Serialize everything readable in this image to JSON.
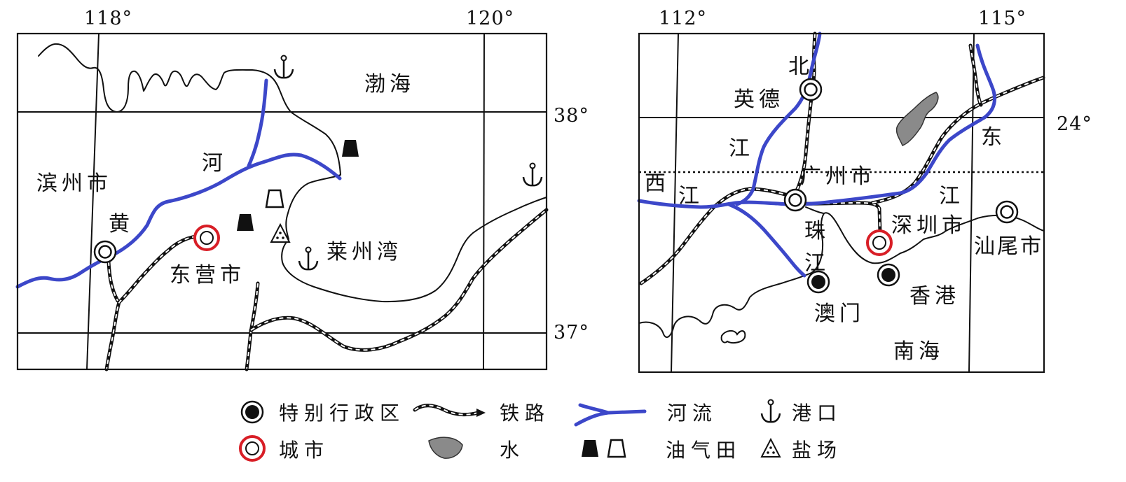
{
  "left_map": {
    "longitude": [
      "118°",
      "120°"
    ],
    "latitude": [
      "38°",
      "37°"
    ],
    "places": {
      "bohai": "渤海",
      "river_he": "河",
      "binzhou": "滨州市",
      "river_huang": "黄",
      "dongying": "东营市",
      "laizhou_bay": "莱州湾"
    }
  },
  "right_map": {
    "longitude": [
      "112°",
      "115°"
    ],
    "latitude": [
      "24°"
    ],
    "places": {
      "bei": "北",
      "yingde": "英德",
      "jiang_north": "江",
      "dong": "东",
      "guangzhou": "广州市",
      "xi": "西",
      "jiang_west": "江",
      "jiang_east": "江",
      "zhu": "珠",
      "jiang_pearl": "江",
      "shenzhen": "深圳市",
      "shanwei": "汕尾市",
      "hongkong": "香港",
      "macau": "澳门",
      "south_sea": "南海"
    }
  },
  "legend": {
    "sar": "特别行政区",
    "railway": "铁路",
    "river": "河流",
    "port": "港口",
    "city": "城市",
    "water": "水",
    "oil_gas_field": "油气田",
    "salt_field": "盐场"
  },
  "colors": {
    "river": "#3c47c9",
    "city_ring": "#d81e26",
    "water": "#8a8a8a",
    "ink": "#111111"
  }
}
